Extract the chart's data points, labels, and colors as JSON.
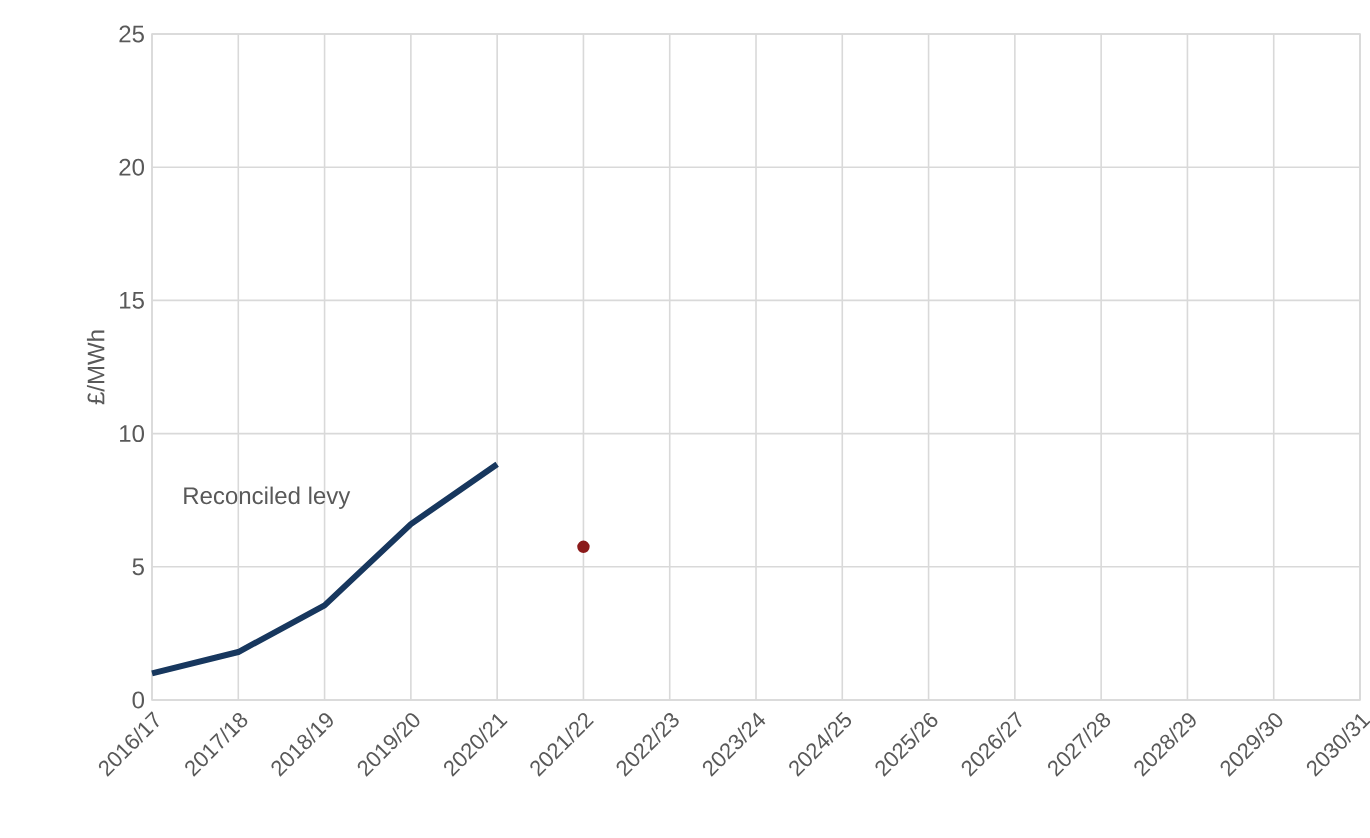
{
  "chart_data": {
    "type": "line",
    "ylabel": "£/MWh",
    "categories": [
      "2016/17",
      "2017/18",
      "2018/19",
      "2019/20",
      "2020/21",
      "2021/22",
      "2022/23",
      "2023/24",
      "2024/25",
      "2025/26",
      "2026/27",
      "2027/28",
      "2028/29",
      "2029/30",
      "2030/31"
    ],
    "series": [
      {
        "name": "Reconciled levy",
        "color": "#17375e",
        "values": [
          1.0,
          1.8,
          3.55,
          6.6,
          8.85,
          null,
          null,
          null,
          null,
          null,
          null,
          null,
          null,
          null,
          null
        ]
      },
      {
        "color": "#8b1a1a",
        "marker": "circle",
        "values": [
          null,
          null,
          null,
          null,
          null,
          5.75,
          null,
          null,
          null,
          null,
          null,
          null,
          null,
          null,
          null
        ]
      }
    ],
    "ylim": [
      0,
      25
    ],
    "yticks": [
      0,
      5,
      10,
      15,
      20,
      25
    ],
    "grid": true,
    "legend": false
  }
}
